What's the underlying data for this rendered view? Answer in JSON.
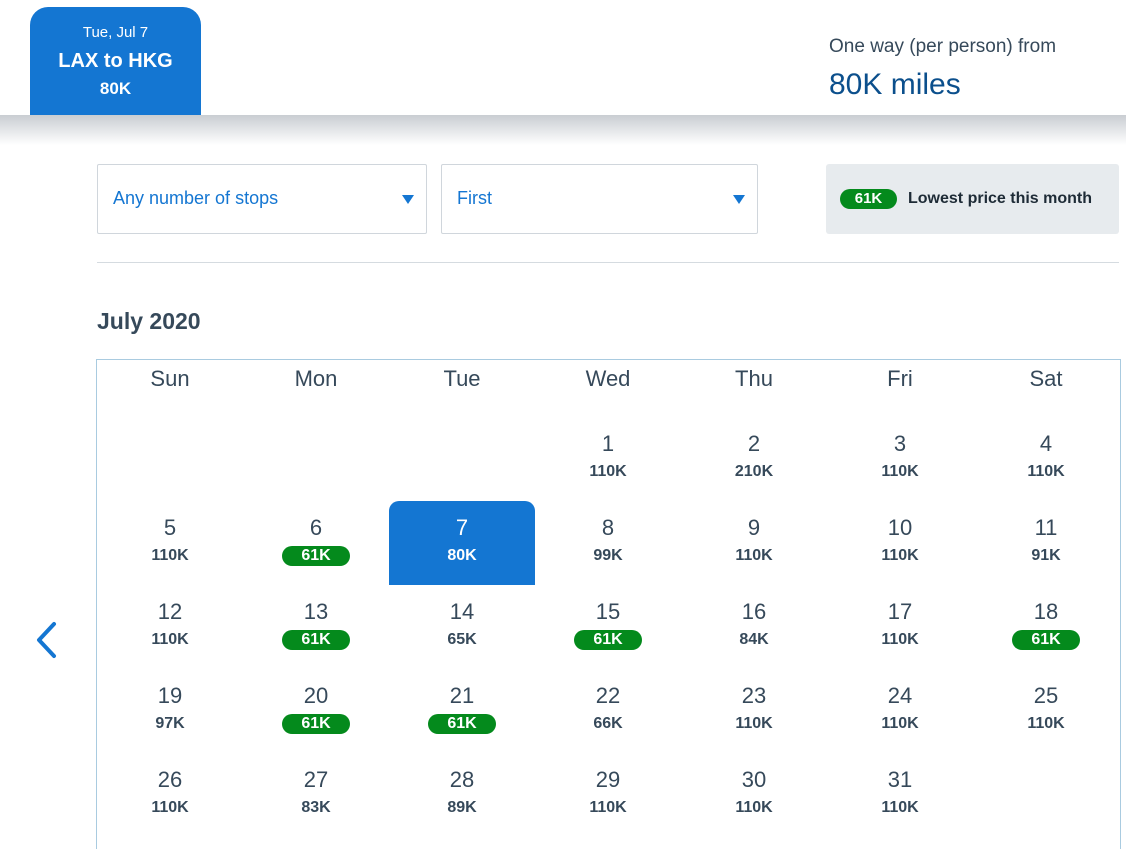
{
  "header": {
    "trip_tab": {
      "date": "Tue, Jul 7",
      "route": "LAX to HKG",
      "price": "80K"
    },
    "fare_label": "One way (per person) from",
    "fare_value": "80K miles"
  },
  "filters": {
    "stops": {
      "value": "Any number of stops"
    },
    "cabin": {
      "value": "First"
    }
  },
  "lowest": {
    "badge": "61K",
    "text": "Lowest price this month"
  },
  "calendar": {
    "month": "July 2020",
    "weekdays": [
      "Sun",
      "Mon",
      "Tue",
      "Wed",
      "Thu",
      "Fri",
      "Sat"
    ],
    "selected_day": "7",
    "lowest_price": "61K",
    "weeks": [
      [
        null,
        null,
        null,
        {
          "day": "1",
          "price": "110K"
        },
        {
          "day": "2",
          "price": "210K"
        },
        {
          "day": "3",
          "price": "110K"
        },
        {
          "day": "4",
          "price": "110K"
        }
      ],
      [
        {
          "day": "5",
          "price": "110K"
        },
        {
          "day": "6",
          "price": "61K"
        },
        {
          "day": "7",
          "price": "80K"
        },
        {
          "day": "8",
          "price": "99K"
        },
        {
          "day": "9",
          "price": "110K"
        },
        {
          "day": "10",
          "price": "110K"
        },
        {
          "day": "11",
          "price": "91K"
        }
      ],
      [
        {
          "day": "12",
          "price": "110K"
        },
        {
          "day": "13",
          "price": "61K"
        },
        {
          "day": "14",
          "price": "65K"
        },
        {
          "day": "15",
          "price": "61K"
        },
        {
          "day": "16",
          "price": "84K"
        },
        {
          "day": "17",
          "price": "110K"
        },
        {
          "day": "18",
          "price": "61K"
        }
      ],
      [
        {
          "day": "19",
          "price": "97K"
        },
        {
          "day": "20",
          "price": "61K"
        },
        {
          "day": "21",
          "price": "61K"
        },
        {
          "day": "22",
          "price": "66K"
        },
        {
          "day": "23",
          "price": "110K"
        },
        {
          "day": "24",
          "price": "110K"
        },
        {
          "day": "25",
          "price": "110K"
        }
      ],
      [
        {
          "day": "26",
          "price": "110K"
        },
        {
          "day": "27",
          "price": "83K"
        },
        {
          "day": "28",
          "price": "89K"
        },
        {
          "day": "29",
          "price": "110K"
        },
        {
          "day": "30",
          "price": "110K"
        },
        {
          "day": "31",
          "price": "110K"
        },
        null
      ]
    ]
  },
  "icons": {
    "prev": "chevron-left-icon",
    "caret": "caret-down-icon"
  },
  "colors": {
    "accent": "#1476d2",
    "low_price": "#048a1c",
    "text": "#36495a",
    "fare_value": "#0b4f8c"
  }
}
